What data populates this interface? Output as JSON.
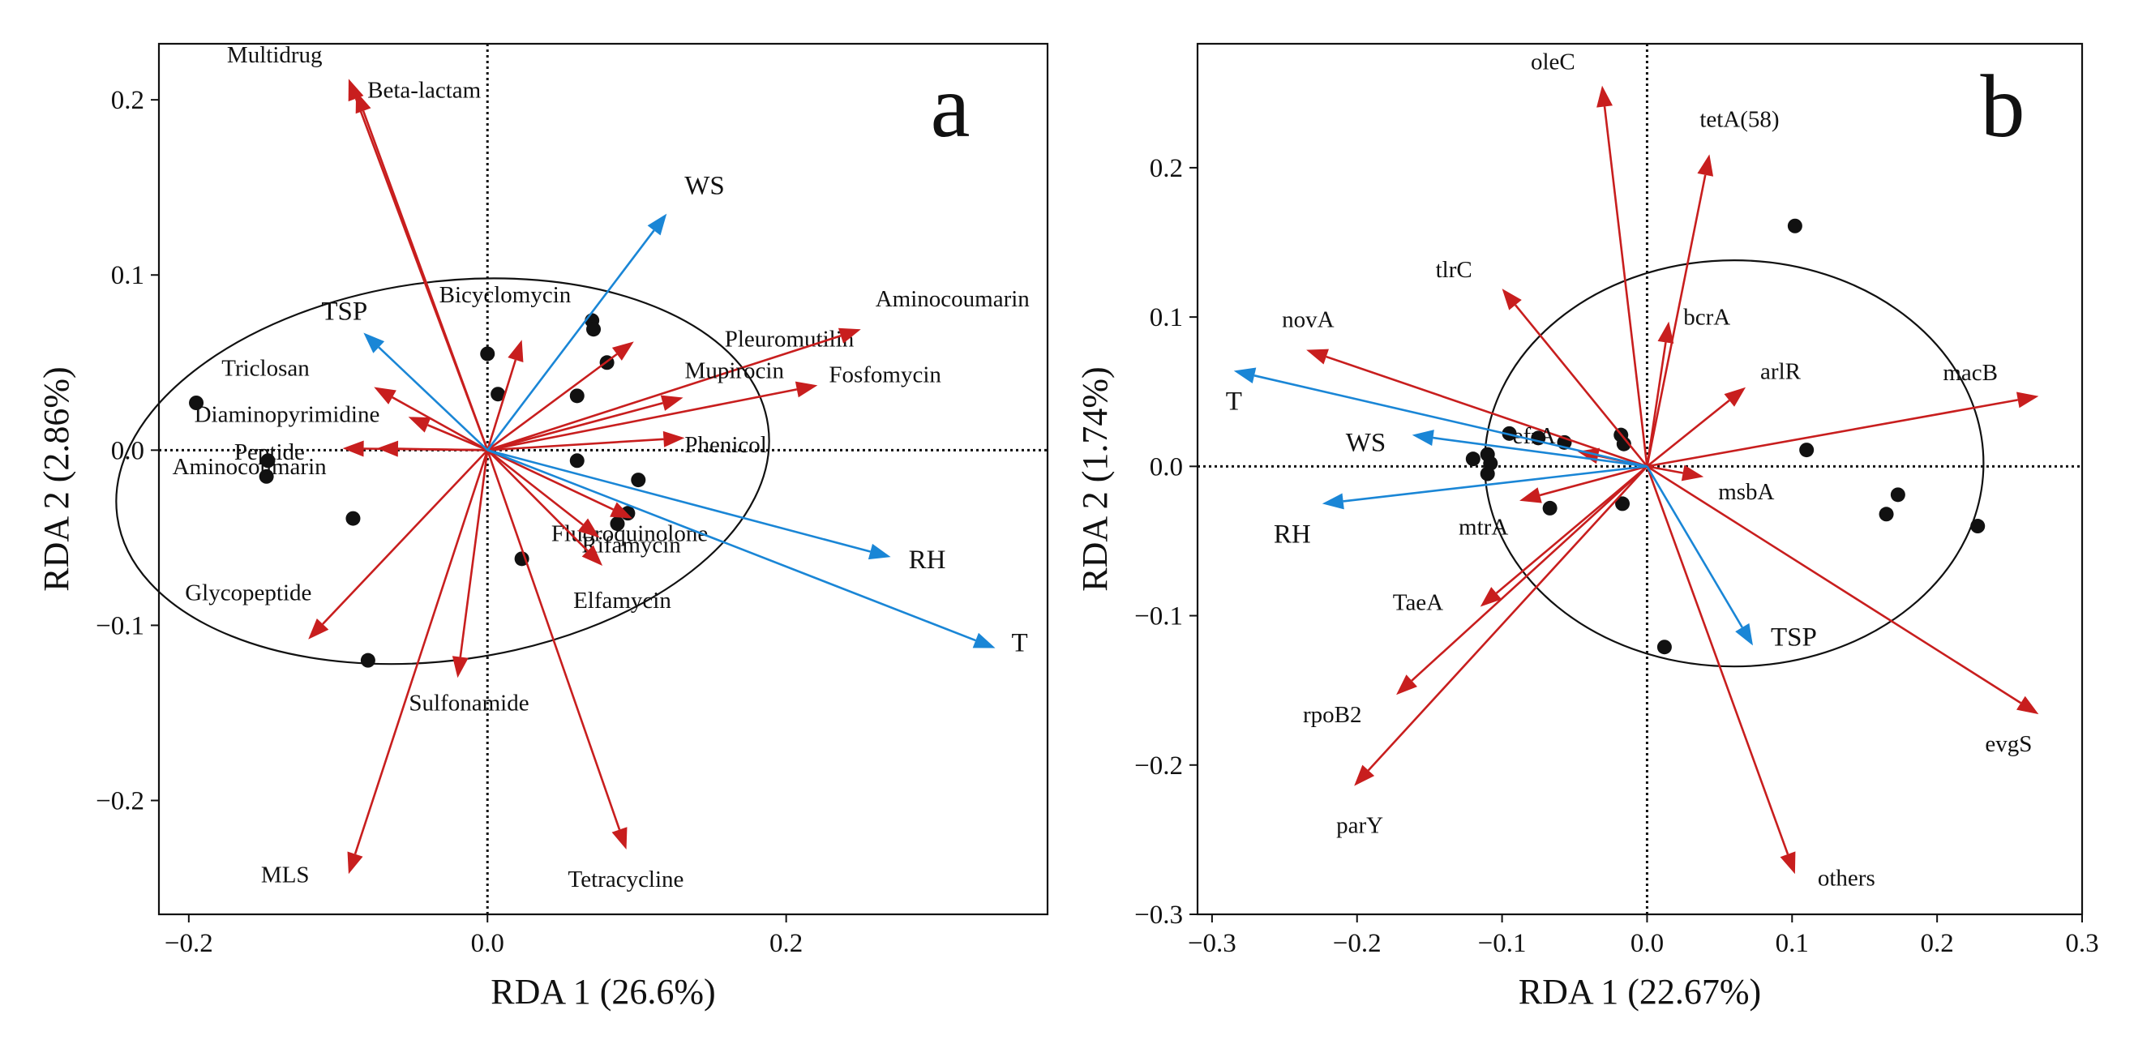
{
  "chart_data": [
    {
      "type": "scatter",
      "subtype": "rda-biplot",
      "panel_label": "a",
      "xlabel": "RDA 1 (26.6%)",
      "ylabel": "RDA 2 (2.86%)",
      "xlim": [
        -0.22,
        0.375
      ],
      "ylim": [
        -0.265,
        0.232
      ],
      "xticks": [
        -0.2,
        0.0,
        0.2
      ],
      "xtick_labels": [
        "−0.2",
        "0.0",
        "0.2"
      ],
      "yticks": [
        -0.2,
        -0.1,
        0.0,
        0.1,
        0.2
      ],
      "ytick_labels": [
        "−0.2",
        "−0.1",
        "0.0",
        "0.1",
        "0.2"
      ],
      "ellipse": {
        "cx": -0.03,
        "cy": -0.012,
        "rx": 0.22,
        "ry": 0.108,
        "angle_deg": 8
      },
      "env_vectors": [
        {
          "label": "WS",
          "x": 0.12,
          "y": 0.135,
          "color": "#1a86d6"
        },
        {
          "label": "TSP",
          "x": -0.083,
          "y": 0.067,
          "color": "#1a86d6"
        },
        {
          "label": "RH",
          "x": 0.27,
          "y": -0.061,
          "color": "#1a86d6"
        },
        {
          "label": "T",
          "x": 0.34,
          "y": -0.113,
          "color": "#1a86d6"
        }
      ],
      "response_vectors": [
        {
          "label": "Multidrug",
          "x": -0.093,
          "y": 0.212,
          "color": "#c81e1e"
        },
        {
          "label": "Beta-lactam",
          "x": -0.088,
          "y": 0.205,
          "color": "#c81e1e"
        },
        {
          "label": "Bicyclomycin",
          "x": 0.023,
          "y": 0.063,
          "color": "#c81e1e"
        },
        {
          "label": "Pleuromutilin",
          "x": 0.098,
          "y": 0.062,
          "color": "#c81e1e"
        },
        {
          "label": "Aminocoumarin",
          "x": 0.25,
          "y": 0.069,
          "color": "#c81e1e"
        },
        {
          "label": "Mupirocin",
          "x": 0.131,
          "y": 0.03,
          "color": "#c81e1e"
        },
        {
          "label": "Fosfomycin",
          "x": 0.221,
          "y": 0.037,
          "color": "#c81e1e"
        },
        {
          "label": "Triclosan",
          "x": -0.076,
          "y": 0.036,
          "color": "#c81e1e"
        },
        {
          "label": "Diaminopyrimidine",
          "x": -0.053,
          "y": 0.019,
          "color": "#c81e1e"
        },
        {
          "label": "Peptide",
          "x": -0.074,
          "y": 0.001,
          "color": "#c81e1e"
        },
        {
          "label": "Aminocoumarin",
          "x": -0.097,
          "y": 0.001,
          "color": "#c81e1e"
        },
        {
          "label": "Phenicol",
          "x": 0.132,
          "y": 0.007,
          "color": "#c81e1e"
        },
        {
          "label": "Fluoroquinolone",
          "x": 0.097,
          "y": -0.039,
          "color": "#c81e1e"
        },
        {
          "label": "Rifamycin",
          "x": 0.075,
          "y": -0.05,
          "color": "#c81e1e"
        },
        {
          "label": "Elfamycin",
          "x": 0.077,
          "y": -0.066,
          "color": "#c81e1e"
        },
        {
          "label": "Glycopeptide",
          "x": -0.12,
          "y": -0.108,
          "color": "#c81e1e"
        },
        {
          "label": "Sulfonamide",
          "x": -0.02,
          "y": -0.13,
          "color": "#c81e1e"
        },
        {
          "label": "MLS",
          "x": -0.093,
          "y": -0.242,
          "color": "#c81e1e"
        },
        {
          "label": "Tetracycline",
          "x": 0.093,
          "y": -0.228,
          "color": "#c81e1e"
        }
      ],
      "points": [
        {
          "x": -0.195,
          "y": 0.027
        },
        {
          "x": -0.147,
          "y": -0.006
        },
        {
          "x": -0.148,
          "y": -0.015
        },
        {
          "x": -0.09,
          "y": -0.039
        },
        {
          "x": -0.08,
          "y": -0.12
        },
        {
          "x": 0.0,
          "y": 0.055
        },
        {
          "x": 0.007,
          "y": 0.032
        },
        {
          "x": 0.023,
          "y": -0.062
        },
        {
          "x": 0.06,
          "y": 0.031
        },
        {
          "x": 0.06,
          "y": -0.006
        },
        {
          "x": 0.07,
          "y": 0.074
        },
        {
          "x": 0.071,
          "y": 0.069
        },
        {
          "x": 0.08,
          "y": 0.05
        },
        {
          "x": 0.087,
          "y": -0.042
        },
        {
          "x": 0.094,
          "y": -0.036
        },
        {
          "x": 0.101,
          "y": -0.017
        }
      ]
    },
    {
      "type": "scatter",
      "subtype": "rda-biplot",
      "panel_label": "b",
      "xlabel": "RDA 1 (22.67%)",
      "ylabel": "RDA 2 (1.74%)",
      "xlim": [
        -0.31,
        0.3
      ],
      "ylim": [
        -0.3,
        0.283
      ],
      "xticks": [
        -0.3,
        -0.2,
        -0.1,
        0.0,
        0.1,
        0.2,
        0.3
      ],
      "xtick_labels": [
        "−0.3",
        "−0.2",
        "−0.1",
        "0.0",
        "0.1",
        "0.2",
        "0.3"
      ],
      "yticks": [
        -0.3,
        -0.2,
        -0.1,
        0.0,
        0.1,
        0.2
      ],
      "ytick_labels": [
        "−0.3",
        "−0.2",
        "−0.1",
        "0.0",
        "0.1",
        "0.2"
      ],
      "ellipse": {
        "cx": 0.06,
        "cy": 0.002,
        "rx": 0.172,
        "ry": 0.136,
        "angle_deg": 0
      },
      "env_vectors": [
        {
          "label": "T",
          "x": -0.285,
          "y": 0.064,
          "color": "#1a86d6"
        },
        {
          "label": "WS",
          "x": -0.162,
          "y": 0.021,
          "color": "#1a86d6"
        },
        {
          "label": "RH",
          "x": -0.224,
          "y": -0.025,
          "color": "#1a86d6"
        },
        {
          "label": "TSP",
          "x": 0.073,
          "y": -0.12,
          "color": "#1a86d6"
        }
      ],
      "response_vectors": [
        {
          "label": "oleC",
          "x": -0.031,
          "y": 0.255,
          "color": "#c81e1e"
        },
        {
          "label": "tetA(58)",
          "x": 0.043,
          "y": 0.209,
          "color": "#c81e1e"
        },
        {
          "label": "tlrC",
          "x": -0.1,
          "y": 0.119,
          "color": "#c81e1e"
        },
        {
          "label": "bcrA",
          "x": 0.015,
          "y": 0.097,
          "color": "#c81e1e"
        },
        {
          "label": "novA",
          "x": -0.235,
          "y": 0.078,
          "color": "#c81e1e"
        },
        {
          "label": "arlR",
          "x": 0.068,
          "y": 0.053,
          "color": "#c81e1e"
        },
        {
          "label": "macB",
          "x": 0.27,
          "y": 0.047,
          "color": "#c81e1e"
        },
        {
          "label": "efrA",
          "x": -0.048,
          "y": 0.01,
          "color": "#c81e1e"
        },
        {
          "label": "msbA",
          "x": 0.039,
          "y": -0.007,
          "color": "#c81e1e"
        },
        {
          "label": "mtrA",
          "x": -0.088,
          "y": -0.023,
          "color": "#c81e1e"
        },
        {
          "label": "TaeA",
          "x": -0.115,
          "y": -0.094,
          "color": "#c81e1e"
        },
        {
          "label": "rpoB2",
          "x": -0.173,
          "y": -0.153,
          "color": "#c81e1e"
        },
        {
          "label": "parY",
          "x": -0.202,
          "y": -0.214,
          "color": "#c81e1e"
        },
        {
          "label": "others",
          "x": 0.102,
          "y": -0.273,
          "color": "#c81e1e"
        },
        {
          "label": "evgS",
          "x": 0.27,
          "y": -0.166,
          "color": "#c81e1e"
        }
      ],
      "points": [
        {
          "x": 0.102,
          "y": 0.161
        },
        {
          "x": 0.11,
          "y": 0.011
        },
        {
          "x": 0.165,
          "y": -0.032
        },
        {
          "x": 0.173,
          "y": -0.019
        },
        {
          "x": 0.228,
          "y": -0.04
        },
        {
          "x": 0.012,
          "y": -0.121
        },
        {
          "x": -0.095,
          "y": 0.022
        },
        {
          "x": -0.075,
          "y": 0.019
        },
        {
          "x": -0.057,
          "y": 0.016
        },
        {
          "x": -0.018,
          "y": 0.021
        },
        {
          "x": -0.016,
          "y": 0.015
        },
        {
          "x": -0.12,
          "y": 0.005
        },
        {
          "x": -0.11,
          "y": 0.008
        },
        {
          "x": -0.108,
          "y": 0.002
        },
        {
          "x": -0.11,
          "y": -0.005
        },
        {
          "x": -0.067,
          "y": -0.028
        },
        {
          "x": -0.017,
          "y": -0.025
        }
      ]
    }
  ]
}
